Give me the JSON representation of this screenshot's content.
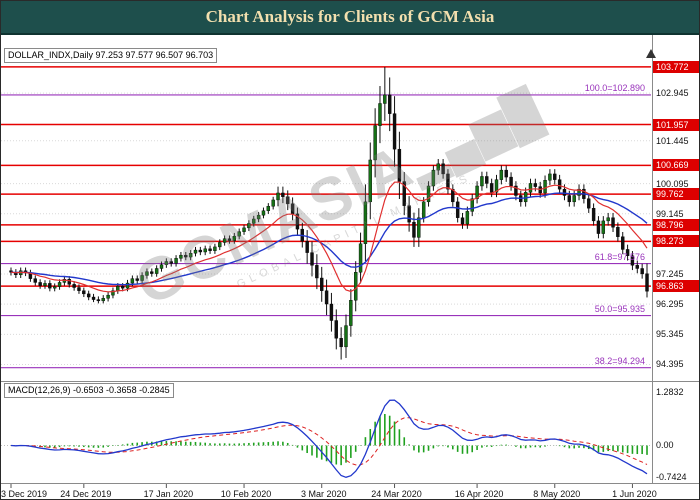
{
  "header": {
    "title": "Chart Analysis for Clients of GCM Asia"
  },
  "price_pane": {
    "symbol_line": "DOLLAR_INDX,Daily 97.253 97.577 96.507 96.703"
  },
  "macd_pane": {
    "label": "MACD(12,26,9) -0.6503 -0.3658 -0.2845"
  },
  "watermark": {
    "text": "GCMASIA",
    "bars": "▂▄▆█",
    "subtext": "GLOBAL CAPITAL MARKETS"
  },
  "colors": {
    "titlebar_bg": "#1e4f4c",
    "titlebar_fg": "#f2dfae",
    "bull": "#167016",
    "bear": "#101010",
    "wick": "#111111",
    "ma_fast": "#e03030",
    "ma_slow": "#2238cc",
    "level_red": "#e60000",
    "fib_purple": "#9933bb",
    "grid": "#d9d9d9",
    "macd_hist": "#1fa11f",
    "macd_line": "#2238cc",
    "macd_signal": "#dd2222"
  },
  "chart_data": {
    "type": "candlestick",
    "symbol": "DOLLAR_INDX",
    "timeframe": "Daily",
    "ohlc_current": {
      "open": 97.253,
      "high": 97.577,
      "low": 96.507,
      "close": 96.703
    },
    "price_ylim": [
      94.0,
      104.4
    ],
    "y_axis_labels": [
      102.945,
      101.445,
      100.095,
      99.145,
      97.245,
      96.295,
      95.345,
      94.395
    ],
    "resistance_levels": [
      103.772,
      101.957,
      100.669,
      99.762,
      98.796,
      98.273,
      96.863
    ],
    "fib_levels": [
      {
        "label": "100.0=102.890",
        "value": 102.89
      },
      {
        "label": "61.8=97.576",
        "value": 97.576
      },
      {
        "label": "50.0=95.935",
        "value": 95.935
      },
      {
        "label": "38.2=94.294",
        "value": 94.294
      }
    ],
    "x_ticks": [
      {
        "label": "3 Dec 2019",
        "i": 0
      },
      {
        "label": "24 Dec 2019",
        "i": 15
      },
      {
        "label": "17 Jan 2020",
        "i": 32
      },
      {
        "label": "10 Feb 2020",
        "i": 48
      },
      {
        "label": "3 Mar 2020",
        "i": 64
      },
      {
        "label": "24 Mar 2020",
        "i": 79
      },
      {
        "label": "16 Apr 2020",
        "i": 96
      },
      {
        "label": "8 May 2020",
        "i": 112
      },
      {
        "label": "1 Jun 2020",
        "i": 128
      }
    ],
    "candles": [
      [
        97.35,
        97.45,
        97.2,
        97.3
      ],
      [
        97.3,
        97.4,
        97.12,
        97.22
      ],
      [
        97.22,
        97.45,
        97.12,
        97.35
      ],
      [
        97.35,
        97.45,
        97.18,
        97.28
      ],
      [
        97.28,
        97.38,
        97.0,
        97.1
      ],
      [
        97.1,
        97.2,
        96.88,
        96.98
      ],
      [
        96.98,
        97.08,
        96.78,
        96.88
      ],
      [
        96.88,
        97.05,
        96.78,
        96.95
      ],
      [
        96.95,
        97.05,
        96.7,
        96.8
      ],
      [
        96.8,
        96.95,
        96.7,
        96.85
      ],
      [
        96.85,
        97.08,
        96.75,
        96.98
      ],
      [
        96.98,
        97.18,
        96.88,
        97.08
      ],
      [
        97.08,
        97.18,
        96.82,
        96.92
      ],
      [
        96.92,
        97.02,
        96.72,
        96.82
      ],
      [
        96.82,
        96.92,
        96.62,
        96.72
      ],
      [
        96.72,
        96.82,
        96.52,
        96.62
      ],
      [
        96.62,
        96.72,
        96.42,
        96.52
      ],
      [
        96.52,
        96.62,
        96.36,
        96.44
      ],
      [
        96.44,
        96.54,
        96.32,
        96.4
      ],
      [
        96.4,
        96.58,
        96.32,
        96.48
      ],
      [
        96.48,
        96.68,
        96.38,
        96.58
      ],
      [
        96.58,
        96.82,
        96.48,
        96.72
      ],
      [
        96.72,
        96.96,
        96.62,
        96.86
      ],
      [
        96.86,
        96.96,
        96.7,
        96.8
      ],
      [
        96.8,
        97.06,
        96.7,
        96.96
      ],
      [
        96.96,
        97.2,
        96.86,
        97.1
      ],
      [
        97.1,
        97.2,
        96.94,
        97.04
      ],
      [
        97.04,
        97.3,
        96.94,
        97.2
      ],
      [
        97.2,
        97.42,
        97.1,
        97.32
      ],
      [
        97.32,
        97.42,
        97.16,
        97.26
      ],
      [
        97.26,
        97.52,
        97.16,
        97.42
      ],
      [
        97.42,
        97.64,
        97.32,
        97.54
      ],
      [
        97.54,
        97.74,
        97.44,
        97.64
      ],
      [
        97.64,
        97.74,
        97.48,
        97.58
      ],
      [
        97.58,
        97.84,
        97.48,
        97.74
      ],
      [
        97.74,
        97.94,
        97.64,
        97.84
      ],
      [
        97.84,
        97.94,
        97.68,
        97.78
      ],
      [
        97.78,
        98.0,
        97.68,
        97.9
      ],
      [
        97.9,
        98.1,
        97.8,
        98.0
      ],
      [
        98.0,
        98.1,
        97.84,
        97.94
      ],
      [
        97.94,
        98.14,
        97.84,
        98.04
      ],
      [
        98.04,
        98.14,
        97.88,
        97.98
      ],
      [
        97.98,
        98.2,
        97.88,
        98.1
      ],
      [
        98.1,
        98.34,
        98.0,
        98.24
      ],
      [
        98.24,
        98.46,
        98.14,
        98.36
      ],
      [
        98.36,
        98.46,
        98.2,
        98.3
      ],
      [
        98.3,
        98.54,
        98.2,
        98.44
      ],
      [
        98.44,
        98.68,
        98.34,
        98.58
      ],
      [
        98.58,
        98.8,
        98.48,
        98.7
      ],
      [
        98.7,
        98.94,
        98.6,
        98.84
      ],
      [
        98.84,
        99.08,
        98.74,
        98.98
      ],
      [
        98.98,
        99.2,
        98.88,
        99.1
      ],
      [
        99.1,
        99.34,
        99.0,
        99.24
      ],
      [
        99.24,
        99.48,
        99.14,
        99.38
      ],
      [
        99.38,
        99.68,
        99.28,
        99.58
      ],
      [
        99.58,
        100.0,
        99.38,
        99.8
      ],
      [
        99.8,
        100.0,
        99.48,
        99.68
      ],
      [
        99.68,
        99.88,
        99.26,
        99.46
      ],
      [
        99.46,
        99.66,
        98.94,
        99.14
      ],
      [
        99.14,
        99.34,
        98.46,
        98.66
      ],
      [
        98.66,
        98.86,
        98.08,
        98.28
      ],
      [
        98.28,
        98.63,
        97.57,
        97.92
      ],
      [
        97.92,
        98.27,
        97.17,
        97.52
      ],
      [
        97.52,
        97.87,
        96.77,
        97.12
      ],
      [
        97.12,
        97.47,
        96.37,
        96.72
      ],
      [
        96.72,
        97.07,
        95.95,
        96.3
      ],
      [
        96.3,
        96.65,
        95.43,
        95.78
      ],
      [
        95.78,
        96.13,
        94.87,
        95.22
      ],
      [
        95.22,
        95.57,
        94.55,
        94.95
      ],
      [
        94.95,
        95.97,
        94.6,
        95.62
      ],
      [
        95.62,
        96.77,
        95.27,
        96.42
      ],
      [
        96.42,
        97.65,
        96.07,
        97.3
      ],
      [
        97.3,
        98.55,
        96.95,
        98.2
      ],
      [
        98.2,
        100.07,
        97.65,
        99.52
      ],
      [
        99.52,
        101.39,
        98.97,
        100.84
      ],
      [
        100.84,
        102.47,
        100.29,
        101.92
      ],
      [
        101.92,
        103.17,
        101.37,
        102.62
      ],
      [
        102.62,
        103.77,
        102.07,
        102.89
      ],
      [
        102.89,
        103.44,
        101.75,
        102.3
      ],
      [
        102.3,
        102.85,
        100.63,
        101.18
      ],
      [
        101.18,
        101.73,
        99.61,
        100.16
      ],
      [
        100.16,
        100.46,
        99.1,
        99.4
      ],
      [
        99.4,
        99.7,
        98.58,
        98.88
      ],
      [
        98.88,
        99.18,
        98.1,
        98.4
      ],
      [
        98.4,
        99.32,
        98.1,
        99.02
      ],
      [
        99.02,
        99.67,
        98.87,
        99.52
      ],
      [
        99.52,
        100.17,
        99.37,
        100.02
      ],
      [
        100.02,
        100.67,
        99.87,
        100.52
      ],
      [
        100.52,
        100.87,
        100.37,
        100.72
      ],
      [
        100.72,
        100.87,
        100.25,
        100.4
      ],
      [
        100.4,
        100.55,
        99.77,
        99.92
      ],
      [
        99.92,
        100.07,
        99.37,
        99.52
      ],
      [
        99.52,
        99.67,
        98.87,
        99.02
      ],
      [
        99.02,
        99.17,
        98.67,
        98.82
      ],
      [
        98.82,
        99.37,
        98.67,
        99.22
      ],
      [
        99.22,
        99.77,
        99.07,
        99.62
      ],
      [
        99.62,
        100.17,
        99.47,
        100.02
      ],
      [
        100.02,
        100.47,
        99.87,
        100.32
      ],
      [
        100.32,
        100.47,
        99.95,
        100.1
      ],
      [
        100.1,
        100.25,
        99.67,
        99.82
      ],
      [
        99.82,
        100.37,
        99.67,
        100.22
      ],
      [
        100.22,
        100.67,
        100.07,
        100.52
      ],
      [
        100.52,
        100.67,
        100.15,
        100.3
      ],
      [
        100.3,
        100.45,
        99.87,
        100.02
      ],
      [
        100.02,
        100.17,
        99.57,
        99.72
      ],
      [
        99.72,
        99.87,
        99.37,
        99.52
      ],
      [
        99.52,
        99.97,
        99.37,
        99.82
      ],
      [
        99.82,
        100.25,
        99.67,
        100.1
      ],
      [
        100.1,
        100.25,
        99.85,
        100.0
      ],
      [
        100.0,
        100.15,
        99.65,
        99.8
      ],
      [
        99.8,
        100.35,
        99.65,
        100.2
      ],
      [
        100.2,
        100.55,
        100.05,
        100.4
      ],
      [
        100.4,
        100.55,
        100.07,
        100.22
      ],
      [
        100.22,
        100.37,
        99.77,
        99.92
      ],
      [
        99.92,
        100.07,
        99.57,
        99.72
      ],
      [
        99.72,
        99.87,
        99.37,
        99.52
      ],
      [
        99.52,
        99.87,
        99.37,
        99.72
      ],
      [
        99.72,
        100.07,
        99.57,
        99.92
      ],
      [
        99.92,
        100.07,
        99.47,
        99.62
      ],
      [
        99.62,
        99.77,
        99.17,
        99.32
      ],
      [
        99.32,
        99.47,
        98.77,
        98.92
      ],
      [
        98.92,
        99.07,
        98.37,
        98.52
      ],
      [
        98.52,
        99.07,
        98.37,
        98.92
      ],
      [
        98.92,
        99.17,
        98.77,
        99.02
      ],
      [
        99.02,
        99.17,
        98.57,
        98.72
      ],
      [
        98.72,
        98.87,
        98.27,
        98.42
      ],
      [
        98.42,
        98.57,
        97.87,
        98.02
      ],
      [
        98.02,
        98.17,
        97.67,
        97.82
      ],
      [
        97.82,
        97.97,
        97.37,
        97.52
      ],
      [
        97.52,
        97.67,
        97.27,
        97.42
      ],
      [
        97.42,
        97.57,
        97.1,
        97.25
      ],
      [
        97.253,
        97.577,
        96.507,
        96.703
      ]
    ],
    "macd": {
      "params": "12,26,9",
      "current": [
        -0.6503,
        -0.3658,
        -0.2845
      ],
      "ylim": [
        -0.85,
        1.4
      ],
      "axis_labels": [
        {
          "label": "1.2832",
          "value": 1.2832
        },
        {
          "label": "0.00",
          "value": 0
        },
        {
          "label": "-0.7424",
          "value": -0.7424
        }
      ]
    }
  }
}
